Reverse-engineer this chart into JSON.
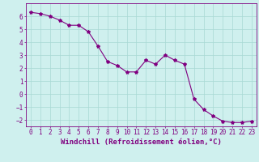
{
  "x": [
    0,
    1,
    2,
    3,
    4,
    5,
    6,
    7,
    8,
    9,
    10,
    11,
    12,
    13,
    14,
    15,
    16,
    17,
    18,
    19,
    20,
    21,
    22,
    23
  ],
  "y": [
    6.3,
    6.2,
    6.0,
    5.7,
    5.3,
    5.3,
    4.8,
    3.7,
    2.5,
    2.2,
    1.7,
    1.7,
    2.6,
    2.3,
    3.0,
    2.6,
    2.3,
    -0.4,
    -1.2,
    -1.7,
    -2.1,
    -2.2,
    -2.2,
    -2.1
  ],
  "line_color": "#800080",
  "marker": "*",
  "marker_color": "#800080",
  "bg_color": "#cff0ee",
  "grid_color": "#a8d8d4",
  "xlabel": "Windchill (Refroidissement éolien,°C)",
  "xlim": [
    -0.5,
    23.5
  ],
  "ylim": [
    -2.5,
    7.0
  ],
  "yticks": [
    -2,
    -1,
    0,
    1,
    2,
    3,
    4,
    5,
    6
  ],
  "xticks": [
    0,
    1,
    2,
    3,
    4,
    5,
    6,
    7,
    8,
    9,
    10,
    11,
    12,
    13,
    14,
    15,
    16,
    17,
    18,
    19,
    20,
    21,
    22,
    23
  ],
  "tick_color": "#800080",
  "axis_color": "#800080",
  "xlabel_fontsize": 6.5,
  "tick_fontsize": 5.5
}
